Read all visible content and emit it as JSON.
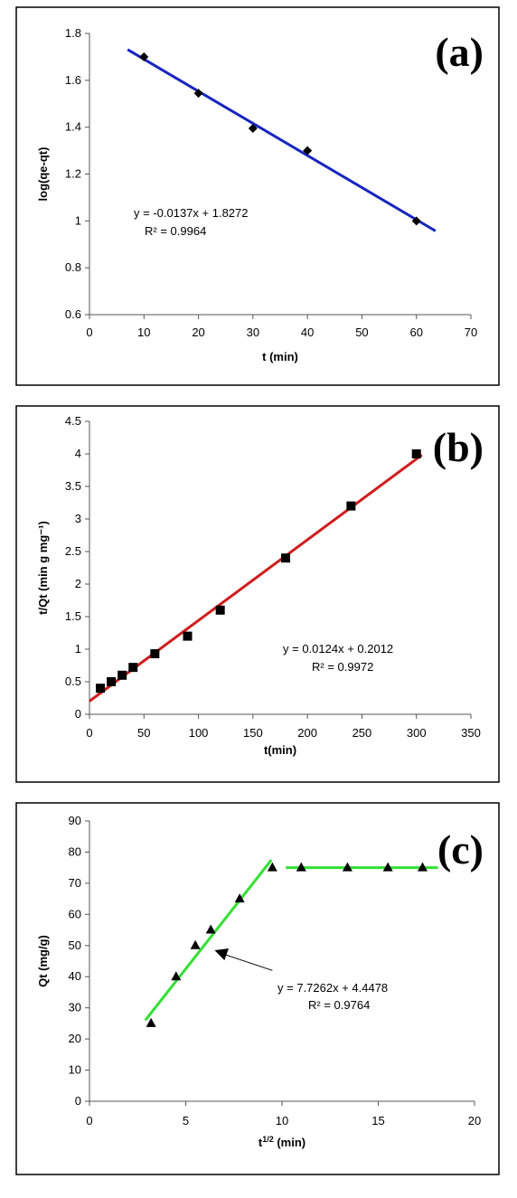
{
  "chart_data": [
    {
      "type": "scatter",
      "panel_label": "(a)",
      "xlabel": "t (min)",
      "ylabel": "log(qe-qt)",
      "xlim": [
        0,
        70
      ],
      "ylim": [
        0.6,
        1.8
      ],
      "xticks": [
        "0",
        "10",
        "20",
        "30",
        "40",
        "50",
        "60",
        "70"
      ],
      "yticks": [
        "0.6",
        "0.8",
        "1",
        "1.2",
        "1.4",
        "1.6",
        "1.8"
      ],
      "grid": false,
      "marker": "diamond",
      "points": [
        [
          10,
          1.7
        ],
        [
          20,
          1.545
        ],
        [
          30,
          1.395
        ],
        [
          40,
          1.3
        ],
        [
          60,
          1.0
        ]
      ],
      "trendline": {
        "x": [
          7,
          63.5
        ],
        "y": [
          1.7313,
          0.9573
        ],
        "color": "#1726c0"
      },
      "equation": "y = -0.0137x + 1.8272",
      "r2": "R² = 0.9964"
    },
    {
      "type": "scatter",
      "panel_label": "(b)",
      "xlabel": "t(min)",
      "ylabel": "t/Qt (min g mg⁻¹)",
      "xlim": [
        0,
        350
      ],
      "ylim": [
        0,
        4.5
      ],
      "xticks": [
        "0",
        "50",
        "100",
        "150",
        "200",
        "250",
        "300",
        "350"
      ],
      "yticks": [
        "0",
        "0.5",
        "1",
        "1.5",
        "2",
        "2.5",
        "3",
        "3.5",
        "4",
        "4.5"
      ],
      "grid": false,
      "marker": "square",
      "points": [
        [
          10,
          0.4
        ],
        [
          20,
          0.5
        ],
        [
          30,
          0.6
        ],
        [
          40,
          0.72
        ],
        [
          60,
          0.93
        ],
        [
          90,
          1.2
        ],
        [
          120,
          1.6
        ],
        [
          180,
          2.4
        ],
        [
          240,
          3.2
        ],
        [
          300,
          4.0
        ]
      ],
      "trendline": {
        "x": [
          0,
          305
        ],
        "y": [
          0.2012,
          3.9832
        ],
        "color": "#d01c1c"
      },
      "equation": "y = 0.0124x + 0.2012",
      "r2": "R² = 0.9972"
    },
    {
      "type": "scatter",
      "panel_label": "(c)",
      "xlabel": "t1/2 (min)",
      "ylabel": "Qt (mg/g)",
      "xlim": [
        0,
        20
      ],
      "ylim": [
        0,
        90
      ],
      "xticks": [
        "0",
        "5",
        "10",
        "15",
        "20"
      ],
      "yticks": [
        "0",
        "10",
        "20",
        "30",
        "40",
        "50",
        "60",
        "70",
        "80",
        "90"
      ],
      "grid": false,
      "marker": "triangle",
      "points": [
        [
          3.2,
          25
        ],
        [
          4.5,
          40
        ],
        [
          5.5,
          50
        ],
        [
          6.3,
          55
        ],
        [
          7.8,
          65
        ],
        [
          9.5,
          75
        ],
        [
          11,
          75
        ],
        [
          13.4,
          75
        ],
        [
          15.5,
          75
        ],
        [
          17.3,
          75
        ]
      ],
      "trendlines": [
        {
          "x": [
            2.9,
            9.45
          ],
          "y": [
            26.0,
            77.5
          ],
          "color": "#33e033"
        },
        {
          "x": [
            10.2,
            18.1
          ],
          "y": [
            75,
            75
          ],
          "color": "#33e033"
        }
      ],
      "annotation_arrow": {
        "from": [
          9.5,
          42
        ],
        "to": [
          6.5,
          48.5
        ]
      },
      "equation": "y = 7.7262x + 4.4478",
      "r2": "R² = 0.9764"
    }
  ]
}
